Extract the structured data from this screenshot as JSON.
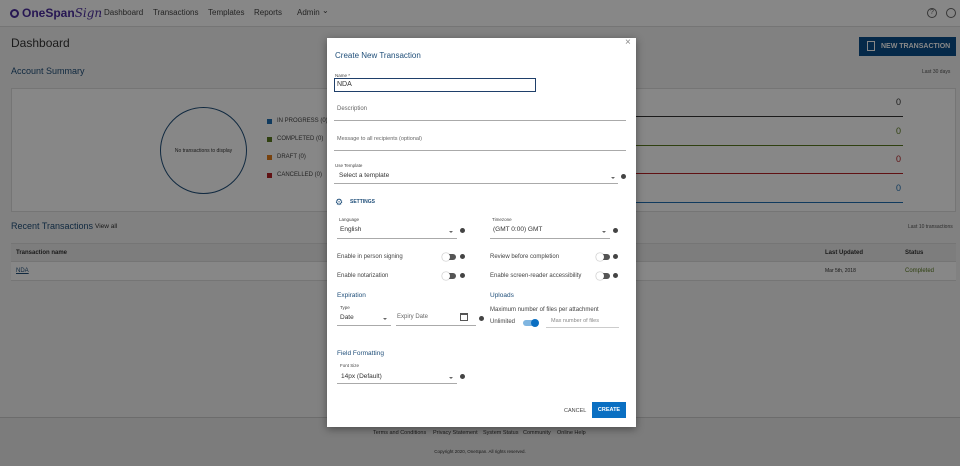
{
  "header": {
    "brand": "OneSpan",
    "brand_script": "Sign",
    "nav": [
      "Dashboard",
      "Transactions",
      "Templates",
      "Reports",
      "Admin"
    ],
    "icons": [
      "help-icon",
      "user-icon"
    ]
  },
  "dashboard": {
    "title": "Dashboard",
    "new_button": "NEW TRANSACTION",
    "account_summary": "Account Summary",
    "period": "Last 30 days",
    "empty_chart": "No transactions to display",
    "legend": [
      {
        "label": "IN PROGRESS (0)",
        "color": "#1f6fb2"
      },
      {
        "label": "COMPLETED (0)",
        "color": "#5a7a1f"
      },
      {
        "label": "DRAFT (0)",
        "color": "#e07b1a"
      },
      {
        "label": "CANCELLED (0)",
        "color": "#b52025"
      }
    ],
    "counts": [
      {
        "value": "0",
        "color": "#333333"
      },
      {
        "value": "0",
        "color": "#5a7a1f"
      },
      {
        "value": "0",
        "color": "#b52025"
      },
      {
        "value": "0",
        "color": "#1f6fb2"
      }
    ],
    "recent": "Recent Transactions",
    "view_all": "View all",
    "recent_note": "Last 10 transactions",
    "columns": [
      "Transaction name",
      "Last Updated",
      "Status"
    ],
    "rows": [
      {
        "name": "NDA",
        "updated": "Mar 5th, 2018",
        "status": "Completed"
      }
    ]
  },
  "footer": {
    "links": [
      "Terms and Conditions",
      "Privacy Statement",
      "System Status",
      "Community",
      "Online Help"
    ],
    "copyright": "Copyright 2020, OneSpan. All rights reserved."
  },
  "modal": {
    "title": "Create New Transaction",
    "name_label": "Name *",
    "name_value": "NDA",
    "description_ph": "Description",
    "message_ph": "Message to all recipients (optional)",
    "template_label": "Use Template",
    "template_value": "Select a template",
    "settings": "SETTINGS",
    "language_label": "Language",
    "language_value": "English",
    "timezone_label": "Timezone",
    "timezone_value": "(GMT 0:00) GMT",
    "in_person": "Enable in person signing",
    "in_person_on": false,
    "review": "Review before completion",
    "review_on": false,
    "notarization": "Enable notarization",
    "notarization_on": false,
    "screen_reader": "Enable screen-reader accessibility",
    "screen_reader_on": false,
    "expiration": "Expiration",
    "type_label": "Type",
    "type_value": "Date",
    "expiry_ph": "Expiry Date",
    "uploads": "Uploads",
    "max_files_label": "Maximum number of files per attachment",
    "unlimited": "Unlimited",
    "unlimited_on": true,
    "max_files_ph": "Max number of files",
    "field_formatting": "Field Formatting",
    "font_size_label": "Font Size",
    "font_size_value": "14px (Default)",
    "cancel": "CANCEL",
    "create": "CREATE"
  }
}
